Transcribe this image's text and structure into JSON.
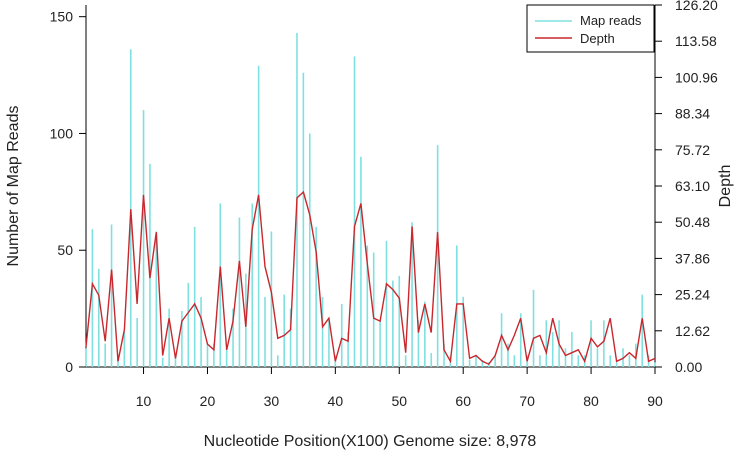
{
  "chart_data": {
    "type": "bar+line",
    "x_label": "Nucleotide Position(X100) Genome size: 8,978",
    "y_left_label": "Number of Map Reads",
    "y_right_label": "Depth",
    "x_range": [
      1,
      90
    ],
    "y_left_range": [
      0,
      155
    ],
    "y_right_range": [
      0,
      126.2
    ],
    "x_ticks": [
      "10",
      "20",
      "30",
      "40",
      "50",
      "60",
      "70",
      "80",
      "90"
    ],
    "y_left_ticks": [
      "0",
      "50",
      "100",
      "150"
    ],
    "y_right_ticks": [
      "0.00",
      "12.62",
      "25.24",
      "37.86",
      "50.48",
      "63.10",
      "75.72",
      "88.34",
      "100.96",
      "113.58",
      "126.20"
    ],
    "legend": [
      {
        "label": "Map reads",
        "color": "#7fe0e0"
      },
      {
        "label": "Depth",
        "color": "#c8282d"
      }
    ],
    "series": [
      {
        "name": "Map reads",
        "style": "bars",
        "color": "#7fe0e0",
        "axis": "left",
        "x": [
          1,
          2,
          3,
          4,
          5,
          6,
          7,
          8,
          9,
          10,
          11,
          12,
          13,
          14,
          15,
          16,
          17,
          18,
          19,
          20,
          21,
          22,
          23,
          24,
          25,
          26,
          27,
          28,
          29,
          30,
          31,
          32,
          33,
          34,
          35,
          36,
          37,
          38,
          39,
          40,
          41,
          42,
          43,
          44,
          45,
          46,
          47,
          48,
          49,
          50,
          51,
          52,
          53,
          54,
          55,
          56,
          57,
          58,
          59,
          60,
          61,
          62,
          63,
          64,
          65,
          66,
          67,
          68,
          69,
          70,
          71,
          72,
          73,
          74,
          75,
          76,
          77,
          78,
          79,
          80,
          81,
          82,
          83,
          84,
          85,
          86,
          87,
          88,
          89,
          90
        ],
        "values": [
          8,
          59,
          42,
          10,
          61,
          5,
          15,
          136,
          21,
          110,
          87,
          58,
          4,
          25,
          5,
          24,
          36,
          60,
          30,
          10,
          10,
          70,
          8,
          25,
          64,
          40,
          70,
          129,
          30,
          58,
          5,
          31,
          25,
          143,
          126,
          100,
          60,
          30,
          20,
          5,
          27,
          15,
          133,
          90,
          52,
          49,
          20,
          54,
          37,
          39,
          5,
          62,
          20,
          28,
          6,
          95,
          10,
          5,
          52,
          30,
          3,
          5,
          3,
          2,
          5,
          23,
          10,
          5,
          23,
          5,
          33,
          5,
          20,
          15,
          20,
          8,
          15,
          5,
          5,
          20,
          8,
          20,
          5,
          2,
          8,
          5,
          10,
          31,
          5,
          2
        ]
      },
      {
        "name": "Depth",
        "style": "line",
        "color": "#c8282d",
        "axis": "right",
        "x": [
          1,
          2,
          3,
          4,
          5,
          6,
          7,
          8,
          9,
          10,
          11,
          12,
          13,
          14,
          15,
          16,
          17,
          18,
          19,
          20,
          21,
          22,
          23,
          24,
          25,
          26,
          27,
          28,
          29,
          30,
          31,
          32,
          33,
          34,
          35,
          36,
          37,
          38,
          39,
          40,
          41,
          42,
          43,
          44,
          45,
          46,
          47,
          48,
          49,
          50,
          51,
          52,
          53,
          54,
          55,
          56,
          57,
          58,
          59,
          60,
          61,
          62,
          63,
          64,
          65,
          66,
          67,
          68,
          69,
          70,
          71,
          72,
          73,
          74,
          75,
          76,
          77,
          78,
          79,
          80,
          81,
          82,
          83,
          84,
          85,
          86,
          87,
          88,
          89,
          90
        ],
        "values": [
          7,
          29,
          25,
          9,
          34,
          2,
          13,
          55,
          22,
          60,
          31,
          47,
          4,
          17,
          3,
          16,
          19,
          22,
          17,
          8,
          6,
          35,
          6,
          16,
          37,
          14,
          48,
          60,
          35,
          26,
          10,
          11,
          13,
          59,
          61,
          53,
          40,
          14,
          17,
          2,
          10,
          9,
          49,
          57,
          36,
          17,
          16,
          29,
          27,
          24,
          5,
          49,
          12,
          22,
          12,
          47,
          6,
          2,
          22,
          22,
          3,
          4,
          2,
          1,
          4,
          11,
          6,
          11,
          17,
          2,
          10,
          11,
          5,
          17,
          8,
          4,
          5,
          6,
          2,
          10,
          7,
          9,
          17,
          2,
          3,
          5,
          3,
          17,
          2,
          3
        ]
      }
    ]
  }
}
